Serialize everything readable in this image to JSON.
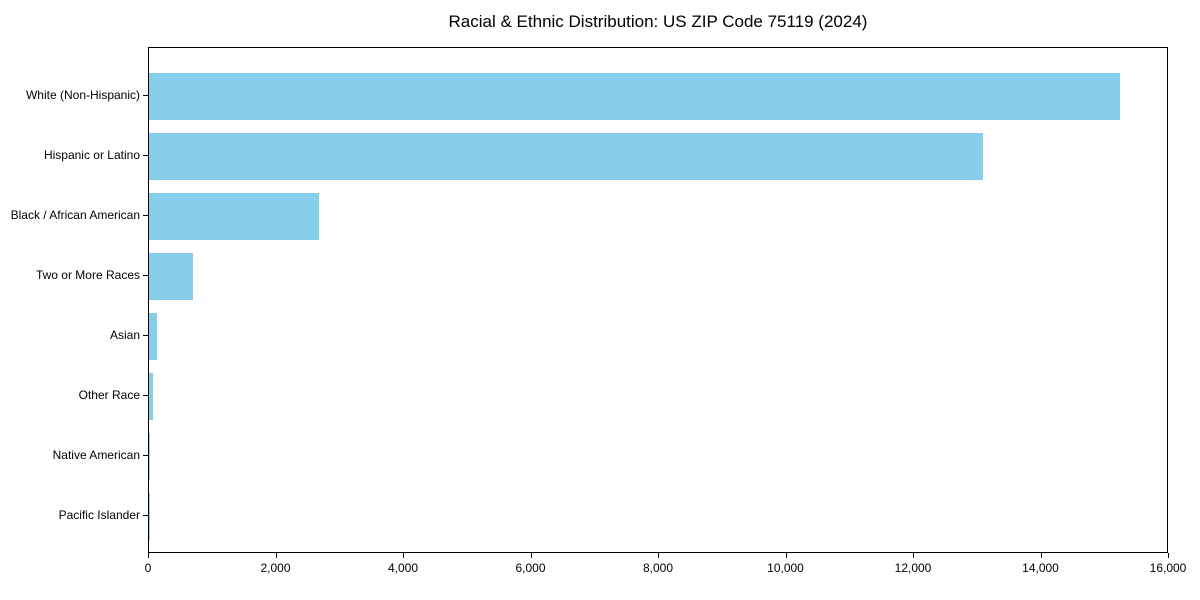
{
  "chart_data": {
    "type": "bar",
    "orientation": "horizontal",
    "title": "Racial & Ethnic Distribution: US ZIP Code 75119 (2024)",
    "categories": [
      "White (Non-Hispanic)",
      "Hispanic or Latino",
      "Black / African American",
      "Two or More Races",
      "Asian",
      "Other Race",
      "Native American",
      "Pacific Islander"
    ],
    "values": [
      15230,
      13080,
      2670,
      690,
      120,
      60,
      15,
      5
    ],
    "xlabel": "",
    "ylabel": "",
    "xlim": [
      0,
      16000
    ],
    "x_ticks": [
      0,
      2000,
      4000,
      6000,
      8000,
      10000,
      12000,
      14000,
      16000
    ],
    "x_tick_labels": [
      "0",
      "2,000",
      "4,000",
      "6,000",
      "8,000",
      "10,000",
      "12,000",
      "14,000",
      "16,000"
    ],
    "bar_color": "#87CEEB",
    "axis_color": "#000000",
    "text_color": "#000000",
    "background_color": "#FFFFFF",
    "grid": false,
    "legend_position": "none"
  }
}
